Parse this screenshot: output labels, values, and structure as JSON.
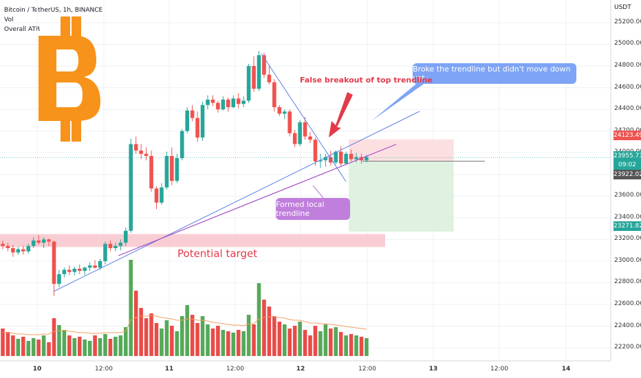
{
  "legend": {
    "symbol": "Bitcoin / TetherUS, 1h, BINANCE",
    "vol": "Vol",
    "atr": "Overall ATR"
  },
  "axis": {
    "unit": "USDT",
    "y_ticks": [
      "25200.00",
      "25000.00",
      "24800.00",
      "24600.00",
      "24400.00",
      "24200.00",
      "24000.00",
      "23800.00",
      "23600.00",
      "23400.00",
      "23200.00",
      "23000.00",
      "22800.00",
      "22600.00",
      "22400.00",
      "22200.00"
    ],
    "x_ticks": [
      {
        "label": "10",
        "bold": true
      },
      {
        "label": "12:00",
        "bold": false
      },
      {
        "label": "11",
        "bold": true
      },
      {
        "label": "12:00",
        "bold": false
      },
      {
        "label": "12",
        "bold": true
      },
      {
        "label": "12:00",
        "bold": false
      },
      {
        "label": "13",
        "bold": true
      },
      {
        "label": "12:00",
        "bold": false
      },
      {
        "label": "14",
        "bold": true
      }
    ]
  },
  "price_tags": {
    "top": "24123.49",
    "current": "23955.73",
    "countdown": "09:02",
    "entry": "23922.02",
    "target": "23271.82"
  },
  "annotations": {
    "callout_blue": "Broke the trendline but didn't move down yet",
    "false_breakout": "False breakout of top trendline",
    "local_trendline": "Formed local trendline",
    "potential_target": "Potential target"
  },
  "colors": {
    "up": "#26a69a",
    "down": "#ef5350",
    "bitcoin": "#f7931a",
    "trendline_blue": "#5b7fe0",
    "trendline_purple": "#a44fc4",
    "callout_blue": "#7ea4f5",
    "callout_purple": "#c07fdc"
  },
  "chart_data": {
    "type": "candlestick",
    "title": "Bitcoin / TetherUS, 1h, BINANCE",
    "ylim": [
      22000,
      25300
    ],
    "candles": [
      [
        23160,
        23190,
        23110,
        23140
      ],
      [
        23140,
        23170,
        23090,
        23120
      ],
      [
        23120,
        23150,
        23040,
        23080
      ],
      [
        23080,
        23130,
        23060,
        23110
      ],
      [
        23110,
        23140,
        23060,
        23090
      ],
      [
        23090,
        23160,
        23070,
        23140
      ],
      [
        23140,
        23220,
        23120,
        23190
      ],
      [
        23190,
        23240,
        23150,
        23170
      ],
      [
        23170,
        23220,
        23120,
        23200
      ],
      [
        23200,
        23210,
        23140,
        23180
      ],
      [
        23180,
        23190,
        22680,
        22790
      ],
      [
        22790,
        22920,
        22760,
        22880
      ],
      [
        22880,
        22940,
        22850,
        22920
      ],
      [
        22920,
        22960,
        22870,
        22900
      ],
      [
        22900,
        22950,
        22870,
        22930
      ],
      [
        22930,
        22970,
        22880,
        22910
      ],
      [
        22910,
        22950,
        22870,
        22940
      ],
      [
        22940,
        22990,
        22910,
        22960
      ],
      [
        22960,
        23010,
        22930,
        22940
      ],
      [
        22940,
        23020,
        22920,
        23000
      ],
      [
        23000,
        23180,
        22970,
        23160
      ],
      [
        23160,
        23190,
        23090,
        23120
      ],
      [
        23120,
        23170,
        23090,
        23140
      ],
      [
        23140,
        23200,
        23100,
        23170
      ],
      [
        23170,
        23310,
        23140,
        23280
      ],
      [
        23280,
        24130,
        23260,
        24080
      ],
      [
        24080,
        24150,
        23990,
        24020
      ],
      [
        24020,
        24080,
        23940,
        23990
      ],
      [
        23990,
        24050,
        23930,
        23970
      ],
      [
        23970,
        24020,
        23640,
        23670
      ],
      [
        23670,
        23690,
        23480,
        23540
      ],
      [
        23540,
        23720,
        23520,
        23680
      ],
      [
        23680,
        24010,
        23660,
        23970
      ],
      [
        23970,
        24050,
        23700,
        23740
      ],
      [
        23740,
        23990,
        23720,
        23950
      ],
      [
        23950,
        24220,
        23930,
        24200
      ],
      [
        24200,
        24420,
        24180,
        24390
      ],
      [
        24390,
        24440,
        24290,
        24320
      ],
      [
        24320,
        24380,
        24100,
        24140
      ],
      [
        24140,
        24470,
        24110,
        24440
      ],
      [
        24440,
        24530,
        24400,
        24490
      ],
      [
        24490,
        24530,
        24430,
        24460
      ],
      [
        24460,
        24480,
        24370,
        24400
      ],
      [
        24400,
        24520,
        24390,
        24490
      ],
      [
        24490,
        24510,
        24380,
        24420
      ],
      [
        24420,
        24530,
        24410,
        24500
      ],
      [
        24500,
        24550,
        24410,
        24450
      ],
      [
        24450,
        24520,
        24420,
        24480
      ],
      [
        24480,
        24820,
        24460,
        24800
      ],
      [
        24800,
        24890,
        24560,
        24590
      ],
      [
        24590,
        24940,
        24570,
        24900
      ],
      [
        24900,
        24920,
        24690,
        24720
      ],
      [
        24720,
        24810,
        24630,
        24650
      ],
      [
        24650,
        24680,
        24380,
        24420
      ],
      [
        24420,
        24440,
        24340,
        24360
      ],
      [
        24360,
        24400,
        24310,
        24380
      ],
      [
        24380,
        24400,
        24150,
        24180
      ],
      [
        24180,
        24210,
        24050,
        24080
      ],
      [
        24080,
        24300,
        24060,
        24280
      ],
      [
        24280,
        24330,
        24120,
        24150
      ],
      [
        24150,
        24190,
        24090,
        24120
      ],
      [
        24120,
        24140,
        23880,
        23920
      ],
      [
        23920,
        23990,
        23860,
        23930
      ],
      [
        23930,
        23990,
        23870,
        23960
      ],
      [
        23960,
        24020,
        23880,
        23910
      ],
      [
        23910,
        24020,
        23890,
        24010
      ],
      [
        24010,
        24060,
        23880,
        23900
      ],
      [
        23900,
        24010,
        23890,
        23990
      ],
      [
        23990,
        24030,
        23920,
        23940
      ],
      [
        23940,
        24000,
        23910,
        23960
      ],
      [
        23960,
        23990,
        23900,
        23930
      ],
      [
        23930,
        23980,
        23910,
        23960
      ]
    ],
    "volume": [
      40,
      35,
      30,
      25,
      28,
      22,
      26,
      24,
      30,
      20,
      55,
      45,
      38,
      30,
      26,
      28,
      24,
      22,
      30,
      26,
      32,
      25,
      28,
      30,
      42,
      140,
      95,
      70,
      55,
      62,
      48,
      40,
      52,
      44,
      36,
      58,
      74,
      60,
      48,
      58,
      46,
      40,
      44,
      38,
      36,
      34,
      38,
      36,
      60,
      46,
      106,
      82,
      72,
      58,
      50,
      46,
      40,
      44,
      50,
      38,
      30,
      44,
      36,
      46,
      40,
      42,
      35,
      30,
      32,
      30,
      28,
      26
    ],
    "atr": [
      22,
      22,
      21,
      20,
      20,
      19,
      19,
      19,
      20,
      20,
      24,
      25,
      25,
      24,
      23,
      22,
      22,
      21,
      21,
      21,
      22,
      22,
      22,
      22,
      24,
      40,
      44,
      46,
      46,
      47,
      46,
      44,
      43,
      42,
      40,
      40,
      42,
      42,
      40,
      40,
      39,
      37,
      36,
      35,
      34,
      33,
      33,
      32,
      35,
      35,
      42,
      44,
      45,
      45,
      44,
      43,
      41,
      40,
      40,
      38,
      36,
      36,
      35,
      35,
      34,
      33,
      32,
      31,
      30,
      29,
      28,
      27
    ],
    "trendlines": [
      {
        "name": "rising-trendline",
        "from": [
          10,
          22680
        ],
        "to": [
          73,
          24200
        ]
      },
      {
        "name": "falling-trendline",
        "from": [
          47,
          24960
        ],
        "to": [
          64,
          23720
        ]
      },
      {
        "name": "local-trendline",
        "from": [
          22,
          23000
        ],
        "to": [
          73,
          24070
        ]
      }
    ],
    "zones": [
      {
        "name": "potential-target-zone",
        "x": [
          8,
          71
        ],
        "y": [
          23130,
          23250
        ],
        "color": "#f7c6cc"
      },
      {
        "name": "stop-zone",
        "x": [
          67,
          88
        ],
        "y": [
          23922,
          24123
        ],
        "color": "#fcd9dc"
      },
      {
        "name": "profit-zone",
        "x": [
          67,
          88
        ],
        "y": [
          23272,
          23922
        ],
        "color": "#d9efdb"
      }
    ]
  }
}
